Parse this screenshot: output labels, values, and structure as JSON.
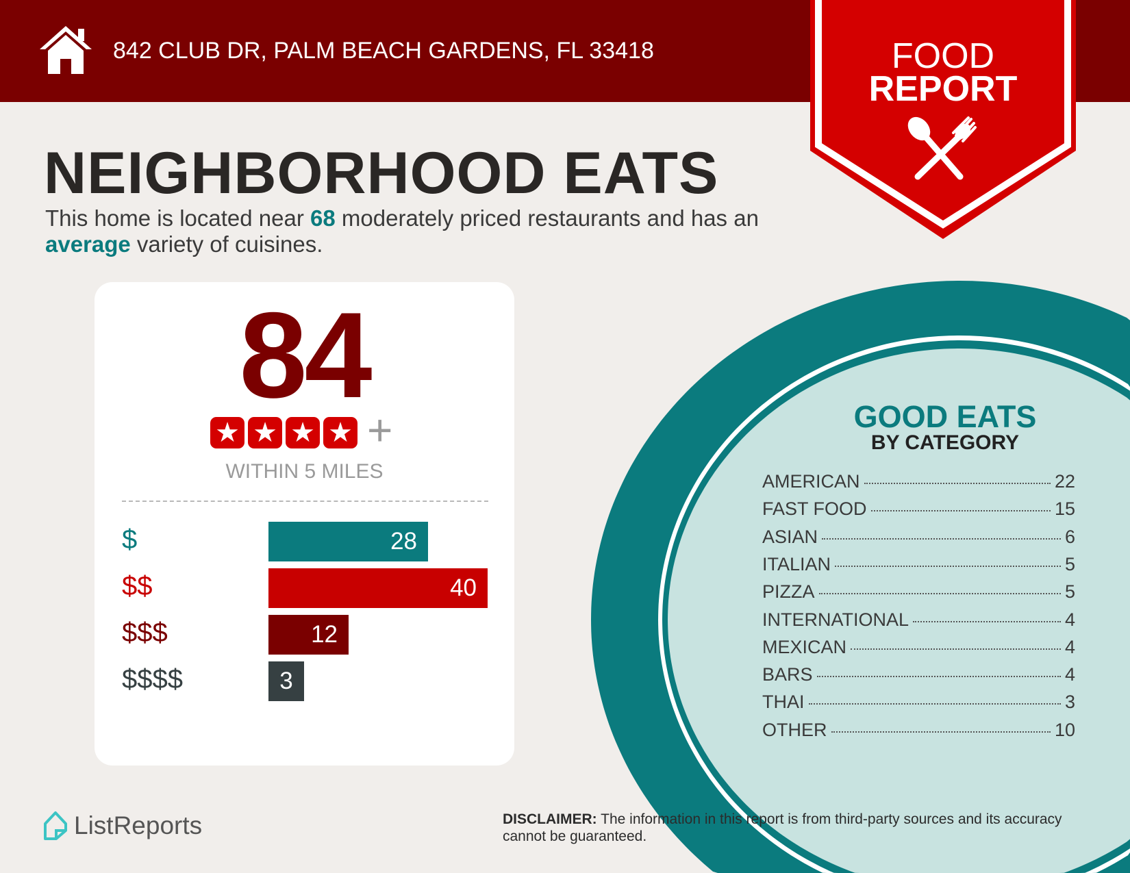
{
  "header": {
    "address": "842 CLUB DR, PALM BEACH GARDENS, FL 33418",
    "icon": "house-icon"
  },
  "badge": {
    "line1": "FOOD",
    "line2": "REPORT",
    "icon": "utensils-icon"
  },
  "title": "NEIGHBORHOOD EATS",
  "subtitle": {
    "p1": "This home is located near ",
    "count": "68",
    "p2": " moderately priced restaurants and has an ",
    "variety": "average",
    "p3": " variety of cuisines."
  },
  "card": {
    "score": "84",
    "stars": 4,
    "plus": "+",
    "within": "WITHIN 5 MILES",
    "prices": [
      {
        "label": "$",
        "value": 28,
        "color": "#0b7b7e"
      },
      {
        "label": "$$",
        "value": 40,
        "color": "#c80000"
      },
      {
        "label": "$$$",
        "value": 12,
        "color": "#7a0000"
      },
      {
        "label": "$$$$",
        "value": 3,
        "color": "#364042"
      }
    ]
  },
  "categories": {
    "title": "GOOD EATS",
    "subtitle": "BY CATEGORY",
    "items": [
      {
        "name": "AMERICAN",
        "count": "22"
      },
      {
        "name": "FAST FOOD",
        "count": "15"
      },
      {
        "name": "ASIAN",
        "count": "6"
      },
      {
        "name": "ITALIAN",
        "count": "5"
      },
      {
        "name": "PIZZA",
        "count": "5"
      },
      {
        "name": "INTERNATIONAL",
        "count": "4"
      },
      {
        "name": "MEXICAN",
        "count": "4"
      },
      {
        "name": "BARS",
        "count": "4"
      },
      {
        "name": "THAI",
        "count": "3"
      },
      {
        "name": "OTHER",
        "count": "10"
      }
    ]
  },
  "footer": {
    "logo": "ListReports",
    "disclaimer_label": "DISCLAIMER:",
    "disclaimer_text": " The information in this report is from third-party sources and its accuracy cannot be guaranteed."
  },
  "colors": {
    "header": "#7a0000",
    "badge": "#d40000",
    "teal": "#0b7b7e",
    "circle_fill": "#c8e3e0",
    "background": "#f1eeeb"
  }
}
